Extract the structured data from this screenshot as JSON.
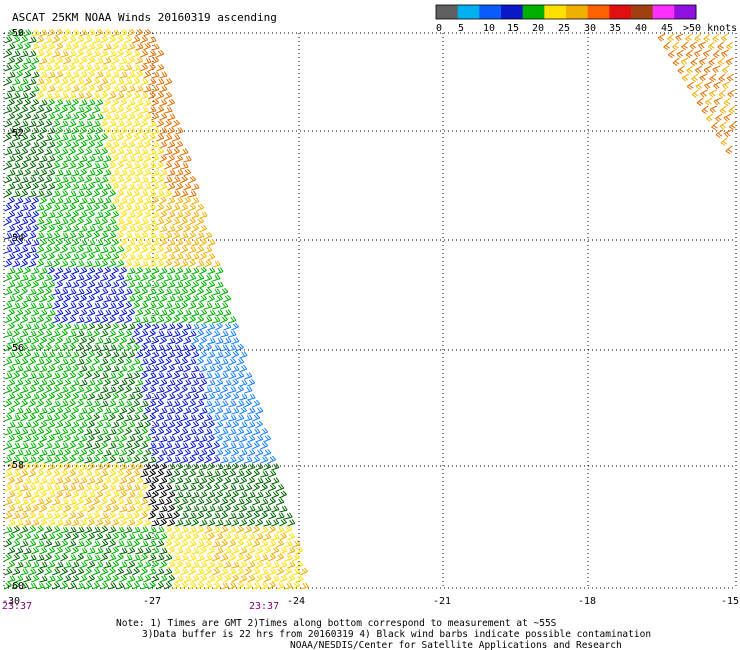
{
  "title": "ASCAT 25KM NOAA Winds 20160319 ascending",
  "colorbar": {
    "colors": [
      "#606060",
      "#00b0f0",
      "#0a5cff",
      "#0a18c8",
      "#00b000",
      "#ffe000",
      "#f0b000",
      "#ff6000",
      "#e01010",
      "#a04010",
      "#ff30ff",
      "#9010e0"
    ],
    "labels": [
      "0",
      "5",
      "10",
      "15",
      "20",
      "25",
      "30",
      "35",
      "40",
      "45",
      ">50 knots"
    ]
  },
  "map": {
    "lat_labels": [
      "-50",
      "-52",
      "-54",
      "-56",
      "-58",
      "-60"
    ],
    "lon_labels": [
      "-30",
      "-27",
      "-24",
      "-21",
      "-18",
      "-15"
    ],
    "lat_range": [
      -60,
      -50
    ],
    "lon_range": [
      -30,
      -15
    ],
    "times": [
      "23:37",
      "23:37"
    ]
  },
  "notes": {
    "line1": "Note: 1) Times are GMT 2)Times along bottom correspond to measurement at ~55S",
    "line2": "3)Data buffer is 22 hrs from 20160319 4) Black wind barbs indicate possible contamination",
    "line3": "NOAA/NESDIS/Center for Satellite Applications and Research"
  },
  "wind_colors": {
    "darkgreen": "#006400",
    "green": "#00b000",
    "blue": "#0a1ad0",
    "lightblue": "#1a80ff",
    "yellow": "#ffe000",
    "lightorange": "#f0b000",
    "orange": "#e07000",
    "black": "#000000"
  }
}
